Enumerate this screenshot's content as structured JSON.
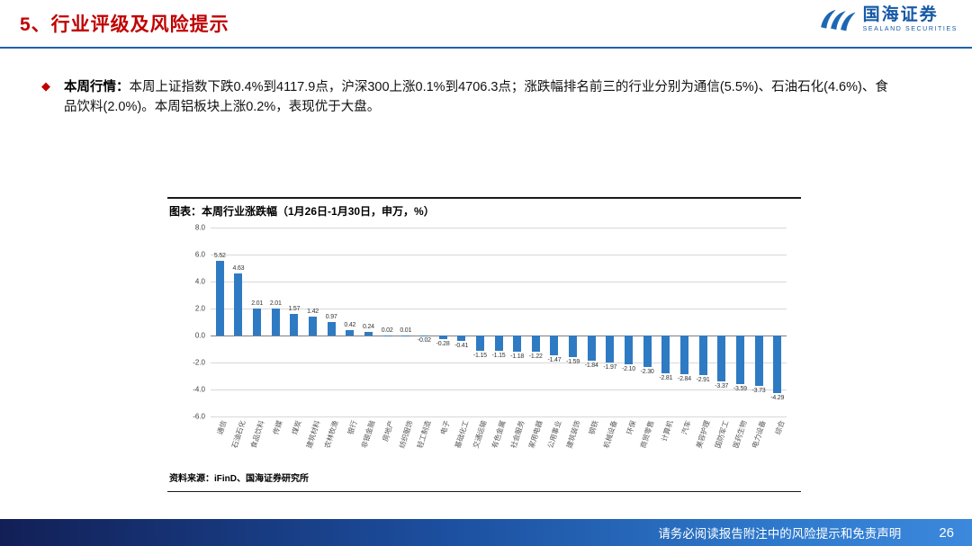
{
  "header": {
    "title": "5、行业评级及风险提示"
  },
  "logo": {
    "name": "国海证券",
    "subtitle": "SEALAND SECURITIES"
  },
  "bullet": {
    "label": "本周行情：",
    "text": "本周上证指数下跌0.4%到4117.9点，沪深300上涨0.1%到4706.3点；涨跌幅排名前三的行业分别为通信(5.5%)、石油石化(4.6%)、食品饮料(2.0%)。本周铝板块上涨0.2%，表现优于大盘。"
  },
  "chart": {
    "title": "图表：本周行业涨跌幅（1月26日-1月30日，申万，%）",
    "source": "资料来源：iFinD、国海证券研究所"
  },
  "chart_data": {
    "type": "bar",
    "title": "本周行业涨跌幅（1月26日-1月30日，申万，%）",
    "categories": [
      "通信",
      "石油石化",
      "食品饮料",
      "传媒",
      "煤炭",
      "建筑材料",
      "农林牧渔",
      "银行",
      "非银金融",
      "房地产",
      "纺织服饰",
      "轻工制造",
      "电子",
      "基础化工",
      "交通运输",
      "有色金属",
      "社会服务",
      "家用电器",
      "公用事业",
      "建筑装饰",
      "钢铁",
      "机械设备",
      "环保",
      "商贸零售",
      "计算机",
      "汽车",
      "美容护理",
      "国防军工",
      "医药生物",
      "电力设备",
      "综合"
    ],
    "values": [
      5.52,
      4.63,
      2.01,
      2.01,
      1.57,
      1.42,
      0.97,
      0.42,
      0.24,
      0.02,
      0.01,
      -0.02,
      -0.28,
      -0.41,
      -1.15,
      -1.15,
      -1.18,
      -1.22,
      -1.47,
      -1.59,
      -1.84,
      -1.97,
      -2.1,
      -2.3,
      -2.81,
      -2.84,
      -2.91,
      -3.37,
      -3.59,
      -3.73,
      -4.29
    ],
    "xlabel": "",
    "ylabel": "",
    "ylim": [
      -6,
      8
    ],
    "ytick_step": 2,
    "grid": true,
    "legend": false,
    "bar_color": "#2F7BC3"
  },
  "footer": {
    "disclaimer": "请务必阅读报告附注中的风险提示和免责声明",
    "page_number": "26"
  },
  "colors": {
    "title_red": "#C00000",
    "brand_blue": "#1659A6",
    "header_rule_blue": "#1F62AE",
    "bar_blue": "#2F7BC3",
    "footer_blue_dark": "#121F56",
    "footer_blue_light": "#3C88DC"
  }
}
